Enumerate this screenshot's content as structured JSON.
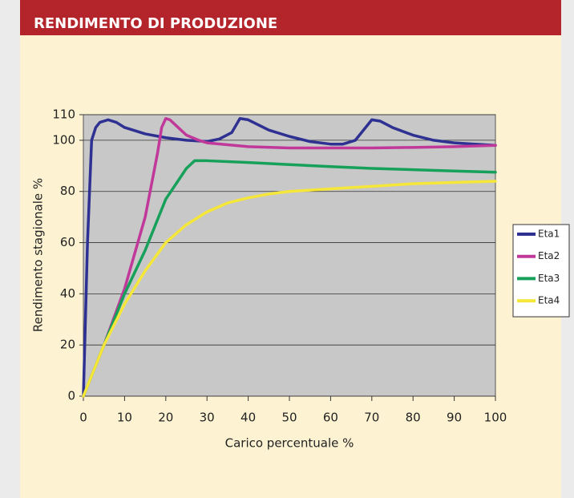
{
  "chart_data": {
    "type": "line",
    "title": "RENDIMENTO DI PRODUZIONE",
    "xlabel": "Carico percentuale %",
    "ylabel": "Rendimento stagionale %",
    "xlim": [
      0,
      100
    ],
    "ylim": [
      0,
      110
    ],
    "xticks": [
      0,
      10,
      20,
      30,
      40,
      50,
      60,
      70,
      80,
      90,
      100
    ],
    "yticks": [
      0,
      20,
      40,
      60,
      80,
      100,
      110
    ],
    "grid": true,
    "legend": "right",
    "series": [
      {
        "name": "Eta1",
        "color": "#2e3192",
        "x": [
          0,
          1,
          2,
          3,
          4,
          6,
          8,
          10,
          15,
          20,
          25,
          30,
          33,
          36,
          38,
          40,
          45,
          50,
          55,
          60,
          63,
          66,
          68,
          70,
          72,
          75,
          80,
          85,
          90,
          95,
          100
        ],
        "values": [
          0,
          60,
          100,
          105,
          107,
          108,
          107,
          105,
          102.5,
          101,
          100,
          99.5,
          100.5,
          103,
          108.5,
          108,
          104,
          101.5,
          99.5,
          98.5,
          98.5,
          100,
          104,
          108,
          107.5,
          105,
          102,
          100,
          99,
          98.5,
          98
        ]
      },
      {
        "name": "Eta2",
        "color": "#c0399a",
        "x": [
          0,
          5,
          10,
          15,
          18,
          19,
          20,
          21,
          23,
          25,
          28,
          30,
          40,
          50,
          60,
          70,
          80,
          90,
          100
        ],
        "values": [
          0,
          20,
          42,
          70,
          95,
          105,
          108.5,
          108,
          105,
          102,
          100,
          99,
          97.5,
          97,
          97,
          97,
          97.2,
          97.5,
          98
        ]
      },
      {
        "name": "Eta3",
        "color": "#16a05a",
        "x": [
          0,
          5,
          10,
          15,
          20,
          25,
          27,
          30,
          40,
          50,
          60,
          70,
          80,
          90,
          100
        ],
        "values": [
          0,
          20,
          40,
          57,
          77,
          89,
          92,
          92,
          91.3,
          90.5,
          89.7,
          89,
          88.5,
          88,
          87.5
        ]
      },
      {
        "name": "Eta4",
        "color": "#f5e63a",
        "x": [
          0,
          5,
          10,
          15,
          20,
          25,
          30,
          35,
          40,
          45,
          50,
          60,
          70,
          80,
          90,
          100
        ],
        "values": [
          0,
          20,
          36,
          49,
          60,
          67,
          72,
          75.5,
          77.5,
          79,
          80,
          81,
          82,
          83,
          83.5,
          84
        ]
      }
    ]
  }
}
